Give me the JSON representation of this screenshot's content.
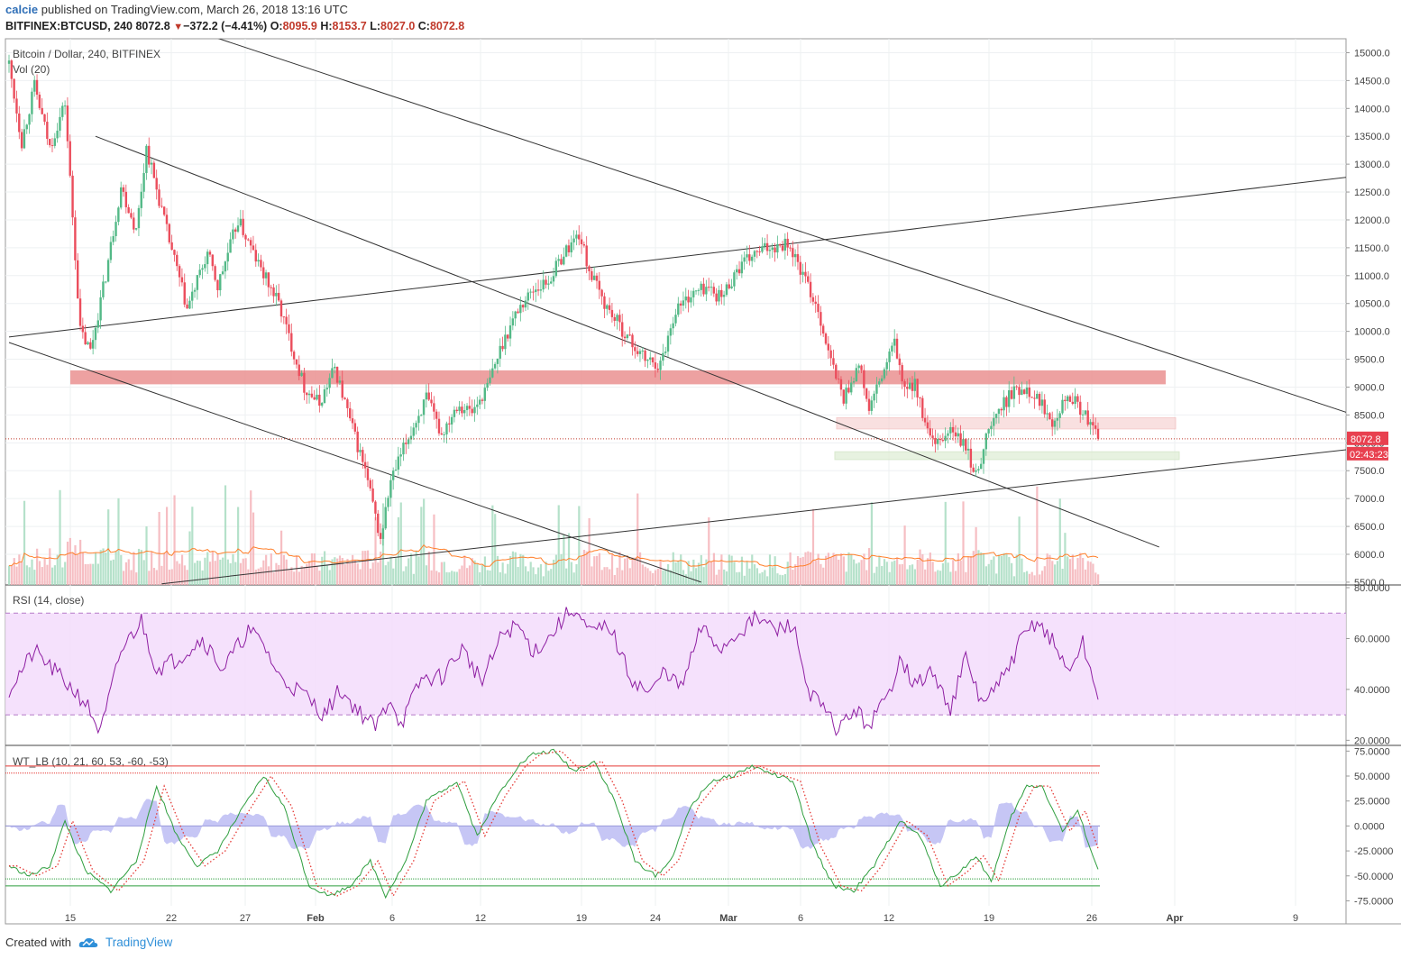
{
  "header": {
    "user": "calcie",
    "published": "published on TradingView.com, March 26, 2018 13:16 UTC",
    "symbol": "BITFINEX:BTCUSD, 240",
    "last": "8072.8",
    "change": "−372.2 (−4.41%)",
    "o_label": "O:",
    "o_value": "8095.9",
    "h_label": "H:",
    "h_value": "8153.7",
    "l_label": "L:",
    "l_value": "8027.0",
    "c_label": "C:",
    "c_value": "8072.8"
  },
  "footer": {
    "created_with": "Created with",
    "brand": "TradingView"
  },
  "colors": {
    "up": "#53b987",
    "down": "#eb4d5c",
    "rsi": "#8e1ea2",
    "wt1": "#2e9e3e",
    "wt2": "#e53935",
    "vol_ma": "#ff7f2a",
    "zone": "#e88a8a"
  },
  "chart_data": [
    {
      "type": "candlestick",
      "title": "Bitcoin / Dollar, 240, BITFINEX",
      "indicator_label": "Vol (20)",
      "y_ticks": [
        "15000.0",
        "14500.0",
        "14000.0",
        "13500.0",
        "13000.0",
        "12500.0",
        "12000.0",
        "11500.0",
        "11000.0",
        "10500.0",
        "10000.0",
        "9500.0",
        "9000.0",
        "8500.0",
        "8000.0",
        "7500.0",
        "7000.0",
        "6500.0",
        "6000.0",
        "5500.0"
      ],
      "ylim": [
        5450,
        15250
      ],
      "x_ticks": [
        "15",
        "22",
        "27",
        "Feb",
        "6",
        "12",
        "19",
        "24",
        "Mar",
        "6",
        "12",
        "19",
        "26",
        "Apr",
        "9"
      ],
      "last_price_label": "8072.8",
      "countdown_label": "02:43:23",
      "last_price": 8072.8,
      "price_path": [
        [
          0,
          14800
        ],
        [
          5,
          13400
        ],
        [
          10,
          14400
        ],
        [
          16,
          13300
        ],
        [
          22,
          14100
        ],
        [
          28,
          10000
        ],
        [
          32,
          9650
        ],
        [
          38,
          11000
        ],
        [
          44,
          12600
        ],
        [
          50,
          11800
        ],
        [
          54,
          13300
        ],
        [
          62,
          11800
        ],
        [
          70,
          10400
        ],
        [
          78,
          11400
        ],
        [
          82,
          10800
        ],
        [
          90,
          12000
        ],
        [
          98,
          11200
        ],
        [
          106,
          10500
        ],
        [
          112,
          9600
        ],
        [
          116,
          9000
        ],
        [
          122,
          8700
        ],
        [
          128,
          9350
        ],
        [
          134,
          8400
        ],
        [
          140,
          7500
        ],
        [
          146,
          6250
        ],
        [
          150,
          7300
        ],
        [
          156,
          8000
        ],
        [
          164,
          8800
        ],
        [
          170,
          8150
        ],
        [
          176,
          8700
        ],
        [
          182,
          8550
        ],
        [
          188,
          9000
        ],
        [
          194,
          9800
        ],
        [
          200,
          10400
        ],
        [
          206,
          10750
        ],
        [
          212,
          10900
        ],
        [
          218,
          11400
        ],
        [
          224,
          11750
        ],
        [
          228,
          11100
        ],
        [
          234,
          10500
        ],
        [
          240,
          10100
        ],
        [
          246,
          9700
        ],
        [
          250,
          9500
        ],
        [
          256,
          9400
        ],
        [
          262,
          10400
        ],
        [
          268,
          10650
        ],
        [
          274,
          10800
        ],
        [
          280,
          10600
        ],
        [
          286,
          11100
        ],
        [
          292,
          11350
        ],
        [
          298,
          11500
        ],
        [
          302,
          11550
        ],
        [
          306,
          11600
        ],
        [
          312,
          11000
        ],
        [
          318,
          10400
        ],
        [
          322,
          9600
        ],
        [
          328,
          8800
        ],
        [
          334,
          9400
        ],
        [
          338,
          8600
        ],
        [
          344,
          9300
        ],
        [
          348,
          9800
        ],
        [
          352,
          8900
        ],
        [
          356,
          9100
        ],
        [
          360,
          8300
        ],
        [
          364,
          7900
        ],
        [
          370,
          8250
        ],
        [
          376,
          7900
        ],
        [
          380,
          7400
        ],
        [
          384,
          8100
        ],
        [
          388,
          8500
        ],
        [
          394,
          8900
        ],
        [
          400,
          9000
        ],
        [
          406,
          8700
        ],
        [
          410,
          8400
        ],
        [
          416,
          8900
        ],
        [
          422,
          8550
        ],
        [
          428,
          8072.8
        ]
      ],
      "resistance_zone": [
        9050,
        9300
      ],
      "light_resistance_zone": [
        8250,
        8450
      ],
      "support_zone": [
        7700,
        7840
      ],
      "volume_scale_note": "volume histogram with 20-period moving average",
      "trendlines": [
        {
          "name": "upper descending channel",
          "from": [
            0,
            16500
          ],
          "to": [
            532,
            8450
          ]
        },
        {
          "name": "mid descending line",
          "from": [
            34,
            13500
          ],
          "to": [
            452,
            6130
          ]
        },
        {
          "name": "lower descending line",
          "from": [
            0,
            9800
          ],
          "to": [
            272,
            5500
          ]
        },
        {
          "name": "rising resistance",
          "from": [
            0,
            9900
          ],
          "to": [
            532,
            12800
          ]
        },
        {
          "name": "rising support",
          "from": [
            60,
            5470
          ],
          "to": [
            532,
            7910
          ]
        }
      ]
    },
    {
      "type": "line",
      "title": "RSI (14, close)",
      "y_ticks": [
        "80.0000",
        "60.0000",
        "40.0000",
        "20.0000"
      ],
      "ylim": [
        18,
        80
      ],
      "band": [
        30,
        70
      ],
      "last_value": 36,
      "rsi_path": [
        [
          0,
          40
        ],
        [
          10,
          55
        ],
        [
          20,
          45
        ],
        [
          30,
          35
        ],
        [
          36,
          23
        ],
        [
          44,
          55
        ],
        [
          52,
          67
        ],
        [
          58,
          48
        ],
        [
          66,
          52
        ],
        [
          76,
          60
        ],
        [
          84,
          48
        ],
        [
          94,
          63
        ],
        [
          100,
          58
        ],
        [
          106,
          45
        ],
        [
          116,
          38
        ],
        [
          124,
          30
        ],
        [
          130,
          40
        ],
        [
          136,
          33
        ],
        [
          144,
          25
        ],
        [
          150,
          37
        ],
        [
          154,
          26
        ],
        [
          162,
          44
        ],
        [
          170,
          45
        ],
        [
          178,
          56
        ],
        [
          186,
          43
        ],
        [
          194,
          62
        ],
        [
          200,
          65
        ],
        [
          206,
          55
        ],
        [
          212,
          60
        ],
        [
          218,
          68
        ],
        [
          222,
          72
        ],
        [
          228,
          62
        ],
        [
          236,
          65
        ],
        [
          244,
          45
        ],
        [
          252,
          38
        ],
        [
          258,
          48
        ],
        [
          264,
          40
        ],
        [
          272,
          64
        ],
        [
          280,
          56
        ],
        [
          286,
          62
        ],
        [
          294,
          68
        ],
        [
          302,
          63
        ],
        [
          308,
          66
        ],
        [
          314,
          40
        ],
        [
          320,
          32
        ],
        [
          326,
          24
        ],
        [
          332,
          32
        ],
        [
          338,
          26
        ],
        [
          346,
          38
        ],
        [
          350,
          54
        ],
        [
          356,
          41
        ],
        [
          362,
          47
        ],
        [
          370,
          33
        ],
        [
          376,
          52
        ],
        [
          382,
          35
        ],
        [
          388,
          40
        ],
        [
          392,
          47
        ],
        [
          398,
          60
        ],
        [
          404,
          67
        ],
        [
          410,
          59
        ],
        [
          416,
          47
        ],
        [
          422,
          58
        ],
        [
          428,
          36
        ]
      ]
    },
    {
      "type": "line",
      "title": "WT_LB (10, 21, 60, 53, -60, -53)",
      "y_ticks": [
        "75.0000",
        "50.0000",
        "25.0000",
        "0.0000",
        "-25.0000",
        "-50.0000",
        "-75.0000"
      ],
      "ylim": [
        -80,
        78
      ],
      "levels": [
        60,
        53,
        -53,
        -60
      ],
      "wt1_path": [
        [
          0,
          -40
        ],
        [
          8,
          -50
        ],
        [
          16,
          -40
        ],
        [
          22,
          5
        ],
        [
          30,
          -45
        ],
        [
          40,
          -65
        ],
        [
          50,
          -35
        ],
        [
          58,
          40
        ],
        [
          66,
          -10
        ],
        [
          74,
          -40
        ],
        [
          82,
          -25
        ],
        [
          90,
          10
        ],
        [
          100,
          50
        ],
        [
          108,
          20
        ],
        [
          118,
          -60
        ],
        [
          126,
          -70
        ],
        [
          134,
          -60
        ],
        [
          142,
          -35
        ],
        [
          148,
          -70
        ],
        [
          156,
          -35
        ],
        [
          164,
          25
        ],
        [
          176,
          45
        ],
        [
          184,
          -10
        ],
        [
          192,
          30
        ],
        [
          200,
          60
        ],
        [
          206,
          72
        ],
        [
          214,
          75
        ],
        [
          222,
          55
        ],
        [
          230,
          65
        ],
        [
          238,
          25
        ],
        [
          246,
          -35
        ],
        [
          254,
          -50
        ],
        [
          260,
          -35
        ],
        [
          268,
          20
        ],
        [
          276,
          45
        ],
        [
          284,
          50
        ],
        [
          292,
          60
        ],
        [
          300,
          52
        ],
        [
          308,
          45
        ],
        [
          316,
          -20
        ],
        [
          324,
          -60
        ],
        [
          332,
          -65
        ],
        [
          340,
          -40
        ],
        [
          350,
          5
        ],
        [
          358,
          -10
        ],
        [
          366,
          -60
        ],
        [
          374,
          -45
        ],
        [
          380,
          -30
        ],
        [
          386,
          -55
        ],
        [
          394,
          10
        ],
        [
          400,
          40
        ],
        [
          406,
          40
        ],
        [
          414,
          -5
        ],
        [
          420,
          15
        ],
        [
          428,
          -45
        ]
      ]
    }
  ]
}
